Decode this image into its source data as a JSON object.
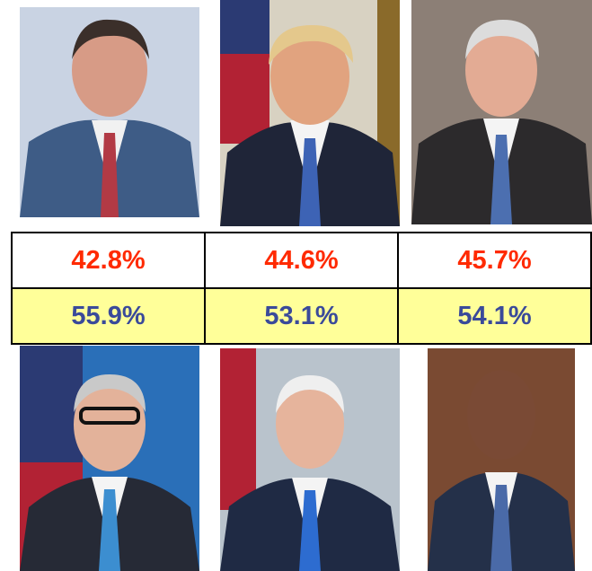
{
  "table": {
    "rows": [
      [
        "42.8%",
        "44.6%",
        "45.7%"
      ],
      [
        "55.9%",
        "53.1%",
        "54.1%"
      ]
    ]
  }
}
